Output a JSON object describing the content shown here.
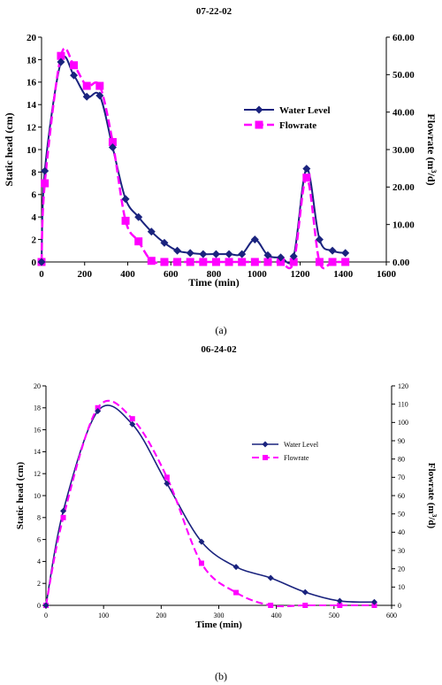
{
  "chart_data": [
    {
      "type": "line",
      "title": "07-22-02",
      "xlabel": "Time (min)",
      "ylabel": "Static head (cm)",
      "y2label": "Flowrate (m3/d)",
      "y2label_main": "Flowrate (m",
      "y2label_sup": "3",
      "y2label_tail": "/d)",
      "xlim": [
        0,
        1600
      ],
      "ylim": [
        0,
        20
      ],
      "y2lim": [
        0,
        60
      ],
      "x_ticks": [
        "0",
        "200",
        "400",
        "600",
        "800",
        "1000",
        "1200",
        "1400",
        "1600"
      ],
      "y_ticks": [
        "0",
        "2",
        "4",
        "6",
        "8",
        "10",
        "12",
        "14",
        "16",
        "18",
        "20"
      ],
      "y2_ticks": [
        "0.00",
        "10.00",
        "20.00",
        "30.00",
        "40.00",
        "50.00",
        "60.00"
      ],
      "legend_position": "right",
      "caption": "(a)",
      "colors": {
        "water": "#1a237e",
        "flow": "#ff00ff"
      },
      "series": [
        {
          "name": "Water Level",
          "axis": "left",
          "x": [
            0,
            15,
            90,
            150,
            210,
            270,
            330,
            390,
            450,
            510,
            570,
            630,
            690,
            750,
            810,
            870,
            930,
            990,
            1050,
            1110,
            1170,
            1230,
            1290,
            1350,
            1410
          ],
          "values": [
            0,
            8.1,
            17.8,
            16.6,
            14.7,
            14.8,
            10.2,
            5.6,
            4.0,
            2.7,
            1.7,
            1.0,
            0.8,
            0.7,
            0.7,
            0.7,
            0.7,
            2.0,
            0.6,
            0.4,
            0.5,
            8.3,
            2.0,
            1.0,
            0.8
          ]
        },
        {
          "name": "Flowrate",
          "axis": "right",
          "x": [
            0,
            15,
            90,
            150,
            210,
            270,
            330,
            390,
            450,
            510,
            570,
            630,
            690,
            750,
            810,
            870,
            930,
            990,
            1050,
            1110,
            1170,
            1230,
            1290,
            1350,
            1410
          ],
          "values": [
            0,
            21,
            55,
            52.5,
            47,
            47,
            32,
            11,
            5.5,
            0.3,
            0,
            0,
            0,
            0,
            0,
            0,
            0,
            0,
            0,
            0,
            0,
            22.5,
            0,
            0,
            0
          ]
        }
      ]
    },
    {
      "type": "line",
      "title": "06-24-02",
      "xlabel": "Time (min)",
      "ylabel": "Static head (cm)",
      "y2label": "Flowrate (m3/d)",
      "y2label_main": "Flowrate (m",
      "y2label_sup": "3",
      "y2label_tail": "/d)",
      "xlim": [
        0,
        600
      ],
      "ylim": [
        0,
        20
      ],
      "y2lim": [
        0,
        120
      ],
      "x_ticks": [
        "0",
        "100",
        "200",
        "300",
        "400",
        "500",
        "600"
      ],
      "y_ticks": [
        "0",
        "2",
        "4",
        "6",
        "8",
        "10",
        "12",
        "14",
        "16",
        "18",
        "20"
      ],
      "y2_ticks": [
        "0",
        "10",
        "20",
        "30",
        "40",
        "50",
        "60",
        "70",
        "80",
        "90",
        "100",
        "110",
        "120"
      ],
      "legend_position": "right",
      "caption": "(b)",
      "colors": {
        "water": "#1a237e",
        "flow": "#ff00ff"
      },
      "series": [
        {
          "name": "Water Level",
          "axis": "left",
          "x": [
            0,
            30,
            90,
            150,
            210,
            270,
            330,
            390,
            450,
            510,
            570
          ],
          "values": [
            0,
            8.6,
            17.7,
            16.5,
            11.1,
            5.8,
            3.5,
            2.5,
            1.2,
            0.4,
            0.3
          ]
        },
        {
          "name": "Flowrate",
          "axis": "right",
          "x": [
            0,
            30,
            90,
            150,
            210,
            270,
            330,
            390,
            450,
            510,
            570
          ],
          "values": [
            0,
            48,
            108,
            102,
            70,
            23,
            7,
            0,
            0,
            0,
            0
          ]
        }
      ]
    }
  ]
}
